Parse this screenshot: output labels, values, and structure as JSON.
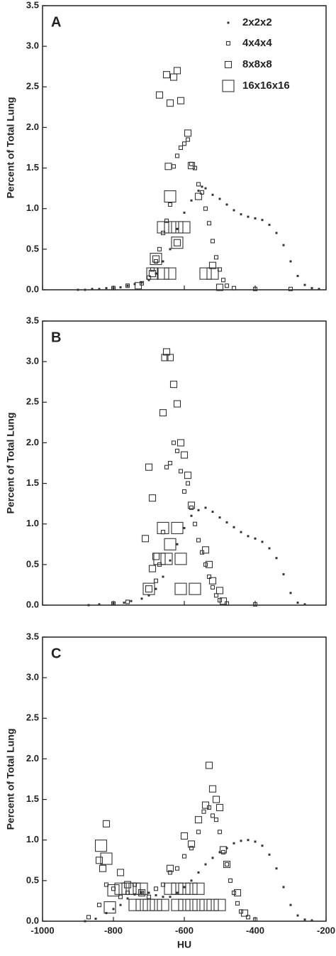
{
  "chart_data": [
    {
      "type": "scatter",
      "label": "A",
      "ylabel": "Percent of Total Lung",
      "legend": "upper right",
      "show_xtick_labels": false,
      "xlim": [
        -1000,
        -200
      ],
      "xticks": [
        -1000,
        -800,
        -600,
        -400,
        -200
      ],
      "ylim": [
        0,
        3.5
      ],
      "yticks": [
        {
          "value": 0,
          "label": "0.0"
        },
        0.5,
        {
          "value": 1,
          "label": "1.0"
        },
        1.5,
        {
          "value": 2,
          "label": "2.0"
        },
        2.5,
        {
          "value": 3,
          "label": "3.0"
        },
        3.5
      ],
      "series": [
        {
          "name": "2x2x2",
          "color": "#333333",
          "x": [
            -900,
            -880,
            -860,
            -840,
            -820,
            -800,
            -780,
            -760,
            -740,
            -720,
            -700,
            -680,
            -660,
            -640,
            -620,
            -600,
            -580,
            -560,
            -550,
            -540,
            -520,
            -500,
            -480,
            -460,
            -440,
            -420,
            -400,
            -380,
            -360,
            -340,
            -320,
            -300,
            -280,
            -260,
            -240,
            -220
          ],
          "values": [
            0,
            0,
            0.01,
            0.01,
            0.02,
            0.02,
            0.03,
            0.05,
            0.07,
            0.09,
            0.12,
            0.2,
            0.35,
            0.5,
            0.75,
            0.95,
            1.1,
            1.22,
            1.27,
            1.25,
            1.17,
            1.12,
            1.05,
            0.98,
            0.93,
            0.9,
            0.88,
            0.86,
            0.8,
            0.7,
            0.55,
            0.35,
            0.17,
            0.06,
            0.02,
            0.01
          ]
        },
        {
          "name": "4x4x4",
          "color": "#333333",
          "x": [
            -800,
            -760,
            -720,
            -700,
            -690,
            -680,
            -670,
            -660,
            -650,
            -640,
            -630,
            -620,
            -610,
            -600,
            -590,
            -580,
            -570,
            -560,
            -550,
            -540,
            -530,
            -520,
            -510,
            -500,
            -490,
            -480,
            -460,
            -400,
            -300
          ],
          "values": [
            0.02,
            0.05,
            0.08,
            0.15,
            0.25,
            0.35,
            0.5,
            0.7,
            0.85,
            1.05,
            1.52,
            1.65,
            1.75,
            1.8,
            1.85,
            1.55,
            1.5,
            1.3,
            1.2,
            1.0,
            0.82,
            0.6,
            0.4,
            0.25,
            0.12,
            0.05,
            0.02,
            0.01,
            0.01
          ]
        },
        {
          "name": "8x8x8",
          "color": "#333333",
          "x": [
            -650,
            -640,
            -620,
            -630,
            -610,
            -670,
            -590,
            -645,
            -580,
            -560,
            -620,
            -680,
            -690,
            -730,
            -520,
            -500
          ],
          "values": [
            2.65,
            2.3,
            2.7,
            2.62,
            2.33,
            2.4,
            1.93,
            1.52,
            1.53,
            1.15,
            0.58,
            0.38,
            0.2,
            0.05,
            0.3,
            0.03
          ]
        },
        {
          "name": "16x16x16",
          "color": "#333333",
          "x": [
            -640,
            -660,
            -640,
            -620,
            -600,
            -620,
            -680,
            -690,
            -660,
            -640,
            -540,
            -520
          ],
          "values": [
            1.15,
            0.77,
            0.77,
            0.77,
            0.77,
            0.58,
            0.38,
            0.2,
            0.2,
            0.2,
            0.2,
            0.2
          ]
        }
      ]
    },
    {
      "type": "scatter",
      "label": "B",
      "ylabel": "Percent of Total Lung",
      "show_xtick_labels": false,
      "xlim": [
        -1000,
        -200
      ],
      "xticks": [
        -1000,
        -800,
        -600,
        -400,
        -200
      ],
      "ylim": [
        0,
        3.5
      ],
      "yticks": [
        {
          "value": 0,
          "label": "0.0"
        },
        0.5,
        {
          "value": 1,
          "label": "1.0"
        },
        1.5,
        {
          "value": 2,
          "label": "2.0"
        },
        2.5,
        {
          "value": 3,
          "label": "3.0"
        },
        3.5
      ],
      "series": [
        {
          "color": "#333333",
          "x": [
            -870,
            -840,
            -800,
            -770,
            -750,
            -720,
            -700,
            -680,
            -660,
            -640,
            -620,
            -600,
            -580,
            -560,
            -540,
            -520,
            -500,
            -480,
            -460,
            -440,
            -420,
            -400,
            -380,
            -360,
            -340,
            -320,
            -300,
            -280,
            -260
          ],
          "values": [
            0,
            0.01,
            0.02,
            0.03,
            0.05,
            0.08,
            0.12,
            0.2,
            0.35,
            0.55,
            0.75,
            0.95,
            1.1,
            1.17,
            1.2,
            1.15,
            1.08,
            1.02,
            0.96,
            0.9,
            0.85,
            0.82,
            0.78,
            0.7,
            0.58,
            0.38,
            0.15,
            0.03,
            0.01
          ]
        },
        {
          "color": "#333333",
          "x": [
            -800,
            -760,
            -680,
            -670,
            -660,
            -650,
            -640,
            -630,
            -620,
            -610,
            -600,
            -590,
            -580,
            -570,
            -560,
            -550,
            -540,
            -530,
            -520,
            -510,
            -500,
            -480,
            -400
          ],
          "values": [
            0.02,
            0.04,
            0.3,
            0.5,
            0.9,
            1.7,
            1.75,
            2.0,
            1.9,
            1.65,
            1.4,
            1.5,
            1.2,
            1.0,
            0.8,
            0.65,
            0.5,
            0.35,
            0.22,
            0.12,
            0.06,
            0.02,
            0.01
          ]
        },
        {
          "color": "#333333",
          "x": [
            -650,
            -655,
            -640,
            -630,
            -620,
            -660,
            -610,
            -600,
            -700,
            -590,
            -690,
            -580,
            -710,
            -690,
            -680,
            -540,
            -530,
            -520,
            -500,
            -490,
            -700
          ],
          "values": [
            3.12,
            3.05,
            3.05,
            2.72,
            2.48,
            2.37,
            2.0,
            1.85,
            1.7,
            1.6,
            1.32,
            1.23,
            0.82,
            0.45,
            0.6,
            0.68,
            0.5,
            0.3,
            0.18,
            0.05,
            0.2
          ]
        },
        {
          "color": "#333333",
          "x": [
            -660,
            -620,
            -640,
            -670,
            -650,
            -610,
            -700,
            -610,
            -570
          ],
          "values": [
            0.95,
            0.95,
            0.75,
            0.57,
            0.57,
            0.57,
            0.2,
            0.2,
            0.2
          ]
        }
      ]
    },
    {
      "type": "scatter",
      "label": "C",
      "ylabel": "Percent of Total Lung",
      "xlabel": "HU",
      "show_xtick_labels": true,
      "xlim": [
        -1000,
        -200
      ],
      "xticks": [
        -1000,
        -800,
        -600,
        -400,
        -200
      ],
      "ylim": [
        0,
        3.5
      ],
      "yticks": [
        {
          "value": 0,
          "label": "0.0"
        },
        0.5,
        {
          "value": 1,
          "label": "1.0"
        },
        1.5,
        {
          "value": 2,
          "label": "2.0"
        },
        2.5,
        {
          "value": 3,
          "label": "3.0"
        },
        3.5
      ],
      "series": [
        {
          "color": "#333333",
          "x": [
            -880,
            -850,
            -820,
            -800,
            -780,
            -760,
            -740,
            -720,
            -700,
            -680,
            -660,
            -640,
            -620,
            -600,
            -580,
            -560,
            -540,
            -520,
            -500,
            -480,
            -460,
            -440,
            -420,
            -400,
            -380,
            -360,
            -340,
            -320,
            -300,
            -280,
            -260,
            -240
          ],
          "values": [
            0,
            0.03,
            0.1,
            0.15,
            0.2,
            0.28,
            0.33,
            0.35,
            0.35,
            0.32,
            0.3,
            0.3,
            0.35,
            0.42,
            0.5,
            0.6,
            0.7,
            0.78,
            0.85,
            0.9,
            0.96,
            0.99,
            1.0,
            0.98,
            0.93,
            0.82,
            0.65,
            0.42,
            0.2,
            0.07,
            0.02,
            0.01
          ]
        },
        {
          "color": "#333333",
          "x": [
            -870,
            -840,
            -820,
            -800,
            -780,
            -760,
            -740,
            -720,
            -700,
            -680,
            -660,
            -640,
            -620,
            -600,
            -580,
            -560,
            -545,
            -530,
            -520,
            -510,
            -500,
            -490,
            -480,
            -470,
            -460,
            -450,
            -440,
            -420,
            -400
          ],
          "values": [
            0.05,
            0.2,
            0.45,
            0.4,
            0.3,
            0.35,
            0.45,
            0.35,
            0.3,
            0.4,
            0.45,
            0.6,
            0.65,
            0.8,
            0.9,
            1.1,
            1.35,
            1.4,
            1.3,
            1.25,
            1.1,
            0.85,
            0.7,
            0.5,
            0.35,
            0.22,
            0.12,
            0.05,
            0.02
          ]
        },
        {
          "color": "#333333",
          "x": [
            -820,
            -840,
            -830,
            -780,
            -720,
            -640,
            -600,
            -580,
            -560,
            -540,
            -530,
            -520,
            -510,
            -500,
            -490,
            -480,
            -450,
            -430,
            -760
          ],
          "values": [
            1.2,
            0.75,
            0.65,
            0.6,
            0.35,
            0.65,
            1.05,
            0.95,
            1.25,
            1.43,
            1.92,
            1.63,
            1.5,
            1.4,
            0.88,
            0.7,
            0.35,
            0.1,
            0.45
          ]
        },
        {
          "color": "#333333",
          "x": [
            -835,
            -820,
            -800,
            -780,
            -760,
            -740,
            -720,
            -700,
            -680,
            -660,
            -640,
            -620,
            -600,
            -580,
            -560,
            -620,
            -600,
            -580,
            -560,
            -540,
            -520,
            -500,
            -810,
            -740,
            -720
          ],
          "values": [
            0.93,
            0.77,
            0.38,
            0.4,
            0.4,
            0.4,
            0.4,
            0.2,
            0.2,
            0.2,
            0.4,
            0.4,
            0.4,
            0.4,
            0.4,
            0.2,
            0.2,
            0.2,
            0.2,
            0.2,
            0.2,
            0.2,
            0.17,
            0.2,
            0.2
          ]
        }
      ]
    }
  ]
}
